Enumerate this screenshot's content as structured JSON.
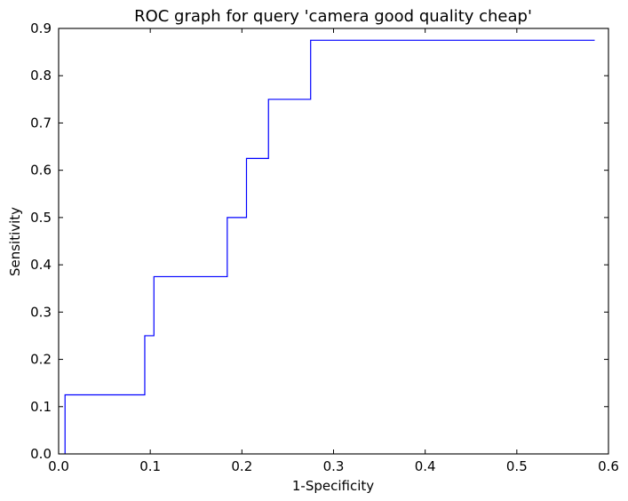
{
  "chart_data": {
    "type": "line",
    "title": "ROC graph for query 'camera good quality cheap'",
    "xlabel": "1-Specificity",
    "ylabel": "Sensitivity",
    "xlim": [
      0.0,
      0.6
    ],
    "ylim": [
      0.0,
      0.9
    ],
    "xticks": [
      "0.0",
      "0.1",
      "0.2",
      "0.3",
      "0.4",
      "0.5",
      "0.6"
    ],
    "yticks": [
      "0.0",
      "0.1",
      "0.2",
      "0.3",
      "0.4",
      "0.5",
      "0.6",
      "0.7",
      "0.8",
      "0.9"
    ],
    "grid": false,
    "series": [
      {
        "color": "#0000ff",
        "step": true,
        "x": [
          0.007,
          0.007,
          0.094,
          0.094,
          0.104,
          0.104,
          0.184,
          0.184,
          0.205,
          0.205,
          0.229,
          0.229,
          0.275,
          0.275,
          0.585
        ],
        "y": [
          0.0,
          0.125,
          0.125,
          0.25,
          0.25,
          0.375,
          0.375,
          0.5,
          0.5,
          0.625,
          0.625,
          0.75,
          0.75,
          0.875,
          0.875
        ]
      }
    ]
  }
}
